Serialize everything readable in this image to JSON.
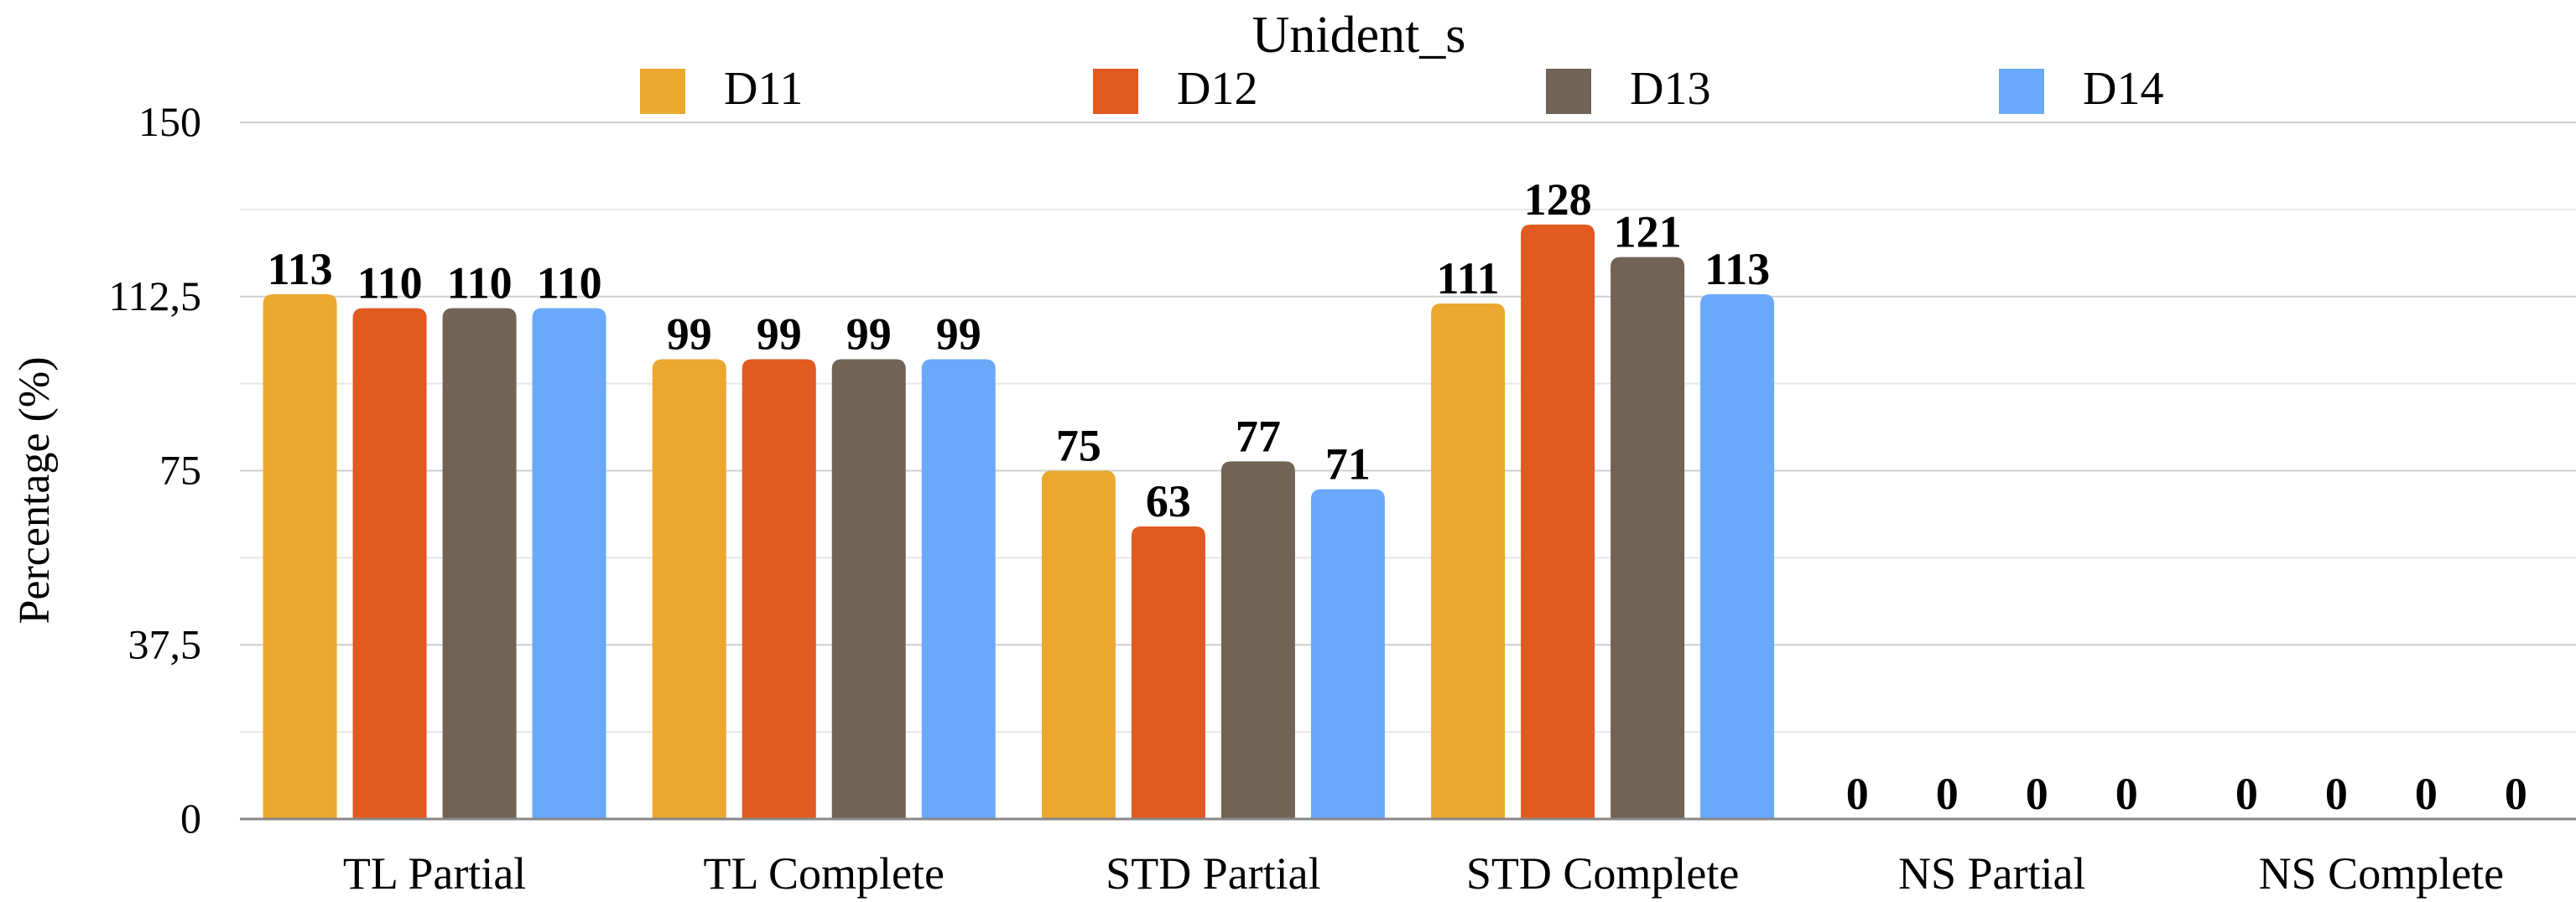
{
  "chart_data": {
    "type": "bar",
    "title": "Unident_s",
    "xlabel": "",
    "ylabel": "Percentage (%)",
    "ylim": [
      0,
      150
    ],
    "yticks": [
      0,
      37.5,
      75,
      112.5,
      150
    ],
    "ytick_labels": [
      "0",
      "37,5",
      "75",
      "112,5",
      "150"
    ],
    "grid": true,
    "legend_position": "top",
    "categories": [
      "TL Partial",
      "TL Complete",
      "STD Partial",
      "STD Complete",
      "NS Partial",
      "NS Complete"
    ],
    "series": [
      {
        "name": "D11",
        "color": "#EAA830",
        "values": [
          113,
          99,
          75,
          111,
          0,
          0
        ]
      },
      {
        "name": "D12",
        "color": "#E05A22",
        "values": [
          110,
          99,
          63,
          128,
          0,
          0
        ]
      },
      {
        "name": "D13",
        "color": "#716456",
        "values": [
          110,
          99,
          77,
          121,
          0,
          0
        ]
      },
      {
        "name": "D14",
        "color": "#6AA8FA",
        "values": [
          110,
          99,
          71,
          113,
          0,
          0
        ]
      }
    ]
  }
}
